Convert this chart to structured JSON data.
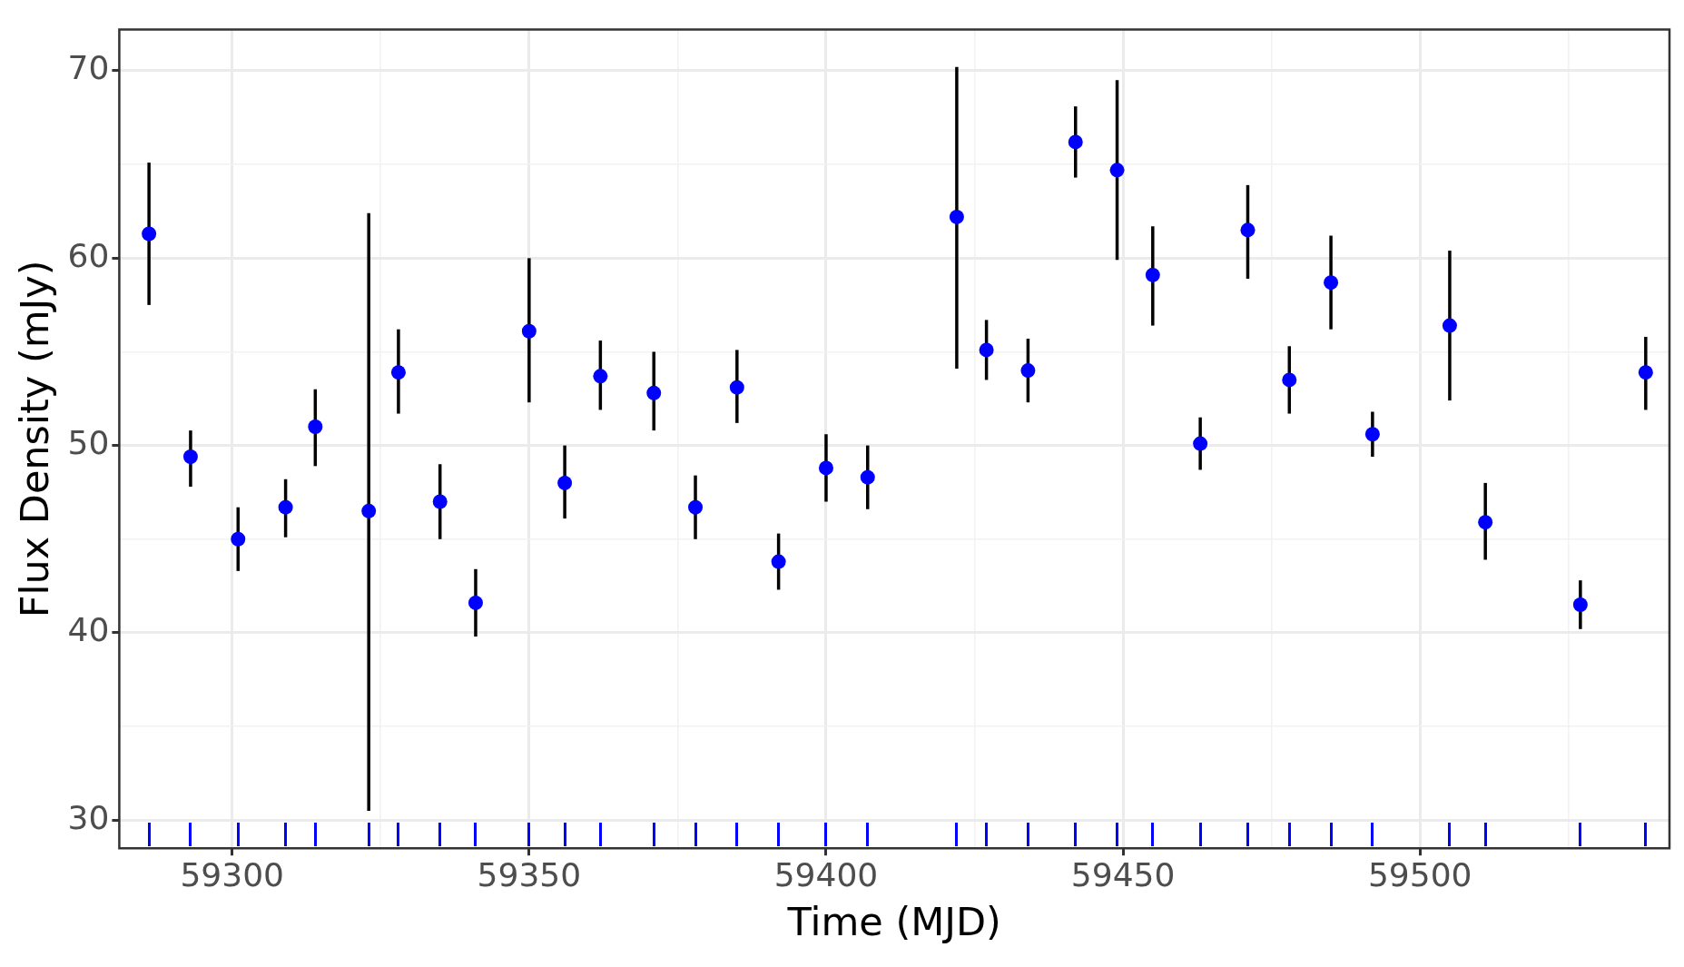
{
  "chart_data": {
    "type": "scatter",
    "xlabel": "Time (MJD)",
    "ylabel": "Flux Density (mJy)",
    "xlim": [
      59281,
      59542
    ],
    "ylim": [
      28.5,
      72.2
    ],
    "xticks": [
      59300,
      {
        "value": 59325,
        "label": null
      },
      59350,
      {
        "value": 59375,
        "label": null
      },
      59400,
      {
        "value": 59425,
        "label": null
      },
      59450,
      {
        "value": 59475,
        "label": null
      },
      59500,
      {
        "value": 59525,
        "label": null
      }
    ],
    "yticks": [
      30,
      {
        "value": 35,
        "label": null
      },
      40,
      {
        "value": 45,
        "label": null
      },
      50,
      {
        "value": 55,
        "label": null
      },
      60,
      {
        "value": 65,
        "label": null
      },
      70
    ],
    "grid": true,
    "legend": false,
    "marker": "circle",
    "series": [
      {
        "color": "#0000ff",
        "x": [
          59286,
          59293,
          59301,
          59309,
          59314,
          59323,
          59328,
          59335,
          59341,
          59350,
          59356,
          59362,
          59371,
          59378,
          59385,
          59392,
          59400,
          59407,
          59422,
          59427,
          59434,
          59442,
          59449,
          59455,
          59463,
          59471,
          59478,
          59485,
          59492,
          59505,
          59511,
          59527,
          59538
        ],
        "values": [
          61.3,
          49.4,
          45.0,
          46.7,
          51.0,
          46.5,
          53.9,
          47.0,
          41.6,
          56.1,
          48.0,
          53.7,
          52.8,
          46.7,
          53.1,
          43.8,
          48.8,
          48.3,
          62.2,
          55.1,
          54.0,
          66.2,
          64.7,
          59.1,
          50.1,
          61.5,
          53.5,
          58.7,
          50.6,
          56.4,
          45.9,
          41.5,
          53.9
        ],
        "errors": [
          [
            57.5,
            65.1
          ],
          [
            47.8,
            50.8
          ],
          [
            43.3,
            46.7
          ],
          [
            45.1,
            48.2
          ],
          [
            48.9,
            53.0
          ],
          [
            30.5,
            62.4
          ],
          [
            51.7,
            56.2
          ],
          [
            45.0,
            49.0
          ],
          [
            39.8,
            43.4
          ],
          [
            52.3,
            60.0
          ],
          [
            46.1,
            50.0
          ],
          [
            51.9,
            55.6
          ],
          [
            50.8,
            55.0
          ],
          [
            45.0,
            48.4
          ],
          [
            51.2,
            55.1
          ],
          [
            42.3,
            45.3
          ],
          [
            47.0,
            50.6
          ],
          [
            46.6,
            50.0
          ],
          [
            54.1,
            70.2
          ],
          [
            53.5,
            56.7
          ],
          [
            52.3,
            55.7
          ],
          [
            64.3,
            68.1
          ],
          [
            59.9,
            69.5
          ],
          [
            56.4,
            61.7
          ],
          [
            48.7,
            51.5
          ],
          [
            58.9,
            63.9
          ],
          [
            51.7,
            55.3
          ],
          [
            56.2,
            61.2
          ],
          [
            49.4,
            51.8
          ],
          [
            52.4,
            60.4
          ],
          [
            43.9,
            48.0
          ],
          [
            40.2,
            42.8
          ],
          [
            51.9,
            55.8
          ]
        ]
      }
    ]
  }
}
